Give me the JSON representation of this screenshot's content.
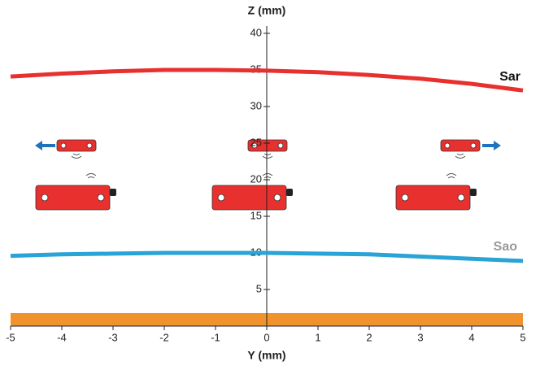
{
  "chart_data": {
    "type": "line",
    "x_label": "Y (mm)",
    "y_label": "Z (mm)",
    "x": [
      -5,
      -4,
      -3,
      -2,
      -1,
      0,
      1,
      2,
      3,
      4,
      5
    ],
    "series": [
      {
        "name": "Sar",
        "color": "#e8302e",
        "values": [
          34.1,
          34.5,
          34.8,
          35.0,
          35.0,
          34.9,
          34.7,
          34.3,
          33.8,
          33.1,
          32.2
        ]
      },
      {
        "name": "Sao",
        "color": "#2aa3d6",
        "values": [
          9.6,
          9.8,
          9.9,
          10.0,
          10.0,
          10.0,
          9.9,
          9.8,
          9.5,
          9.2,
          8.9
        ]
      }
    ],
    "xlim": [
      -5,
      5
    ],
    "ylim": [
      0,
      40
    ],
    "xticks": [
      -5,
      -4,
      -3,
      -2,
      -1,
      0,
      1,
      2,
      3,
      4,
      5
    ],
    "yticks": [
      5,
      10,
      15,
      20,
      25,
      30,
      35,
      40
    ]
  }
}
